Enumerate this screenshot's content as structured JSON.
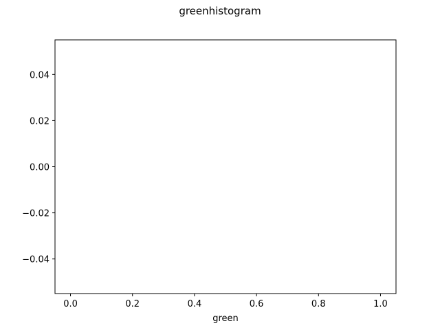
{
  "chart_data": {
    "type": "bar",
    "title": "greenhistogram",
    "xlabel": "green",
    "ylabel": "",
    "xlim": [
      -0.05,
      1.05
    ],
    "ylim": [
      -0.055,
      0.055
    ],
    "xticks": [
      0.0,
      0.2,
      0.4,
      0.6,
      0.8,
      1.0
    ],
    "xtick_labels": [
      "0.0",
      "0.2",
      "0.4",
      "0.6",
      "0.8",
      "1.0"
    ],
    "yticks": [
      -0.04,
      -0.02,
      0.0,
      0.02,
      0.04
    ],
    "ytick_labels": [
      "−0.04",
      "−0.02",
      "0.00",
      "0.02",
      "0.04"
    ],
    "values": [],
    "grid": false,
    "legend": false
  }
}
